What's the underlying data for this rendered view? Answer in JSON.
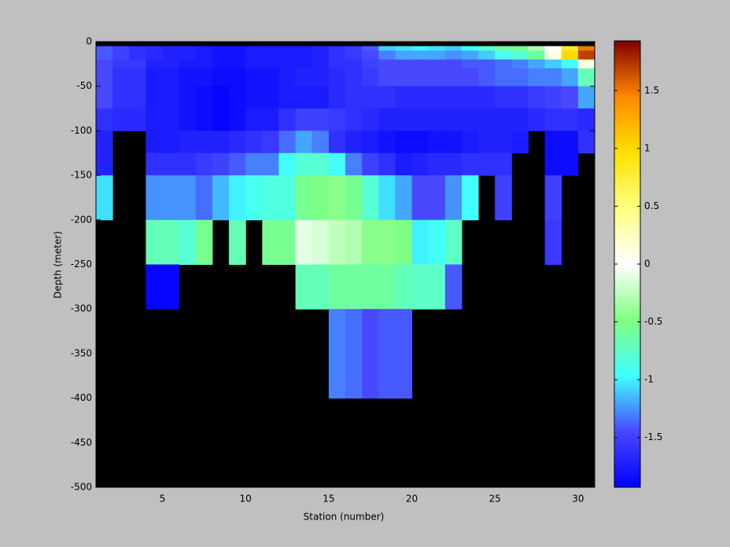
{
  "chart_data": {
    "type": "heatmap",
    "xlabel": "Station (number)",
    "ylabel": "Depth (meter)",
    "x": [
      1,
      2,
      3,
      4,
      5,
      6,
      7,
      8,
      9,
      10,
      11,
      12,
      13,
      14,
      15,
      16,
      17,
      18,
      19,
      20,
      21,
      22,
      23,
      24,
      25,
      26,
      27,
      28,
      29,
      30,
      31
    ],
    "y": [
      0,
      -5,
      -10,
      -20,
      -30,
      -50,
      -75,
      -100,
      -125,
      -150,
      -200,
      -250,
      -300,
      -400,
      -500
    ],
    "values": [
      [
        null,
        null,
        null,
        null,
        null,
        null,
        null,
        null,
        null,
        null,
        null,
        null,
        null,
        null,
        null,
        null,
        null,
        null,
        null,
        null,
        null,
        null,
        null,
        null,
        null,
        null,
        null,
        null,
        null,
        null
      ],
      [
        -1.4,
        -1.5,
        -1.6,
        -1.65,
        -1.7,
        -1.7,
        -1.75,
        -1.8,
        -1.8,
        -1.75,
        -1.75,
        -1.75,
        -1.75,
        -1.7,
        -1.6,
        -1.55,
        -1.4,
        -1.1,
        -1.05,
        -1.0,
        -1.05,
        -1.1,
        -0.95,
        -0.8,
        -0.6,
        -0.55,
        -0.3,
        0,
        0.8,
        1.5
      ],
      [
        -1.4,
        -1.5,
        -1.6,
        -1.65,
        -1.7,
        -1.7,
        -1.75,
        -1.8,
        -1.8,
        -1.75,
        -1.75,
        -1.75,
        -1.75,
        -1.7,
        -1.6,
        -1.55,
        -1.45,
        -1.3,
        -1.2,
        -1.2,
        -1.2,
        -1.25,
        -1.2,
        -1.1,
        -0.9,
        -0.8,
        -0.6,
        0.1,
        1.0,
        1.7
      ],
      [
        -1.45,
        -1.55,
        -1.55,
        -1.7,
        -1.7,
        -1.75,
        -1.75,
        -1.8,
        -1.8,
        -1.75,
        -1.75,
        -1.75,
        -1.75,
        -1.7,
        -1.6,
        -1.6,
        -1.5,
        -1.45,
        -1.45,
        -1.45,
        -1.45,
        -1.45,
        -1.4,
        -1.4,
        -1.35,
        -1.3,
        -1.2,
        -1.1,
        -0.95,
        0.1
      ],
      [
        -1.45,
        -1.6,
        -1.6,
        -1.75,
        -1.75,
        -1.8,
        -1.8,
        -1.85,
        -1.85,
        -1.8,
        -1.8,
        -1.75,
        -1.7,
        -1.7,
        -1.65,
        -1.6,
        -1.55,
        -1.45,
        -1.45,
        -1.45,
        -1.45,
        -1.45,
        -1.45,
        -1.4,
        -1.35,
        -1.35,
        -1.3,
        -1.3,
        -1.2,
        -0.7
      ],
      [
        -1.45,
        -1.6,
        -1.6,
        -1.75,
        -1.75,
        -1.8,
        -1.85,
        -1.9,
        -1.85,
        -1.8,
        -1.8,
        -1.75,
        -1.75,
        -1.75,
        -1.65,
        -1.6,
        -1.6,
        -1.6,
        -1.65,
        -1.65,
        -1.65,
        -1.65,
        -1.65,
        -1.65,
        -1.6,
        -1.6,
        -1.55,
        -1.5,
        -1.45,
        -1.2
      ],
      [
        -1.6,
        -1.65,
        -1.65,
        -1.75,
        -1.75,
        -1.8,
        -1.85,
        -1.9,
        -1.85,
        -1.75,
        -1.75,
        -1.6,
        -1.5,
        -1.5,
        -1.55,
        -1.6,
        -1.65,
        -1.7,
        -1.7,
        -1.7,
        -1.7,
        -1.7,
        -1.7,
        -1.7,
        -1.7,
        -1.7,
        -1.65,
        -1.6,
        -1.6,
        -1.65
      ],
      [
        -1.7,
        null,
        null,
        -1.75,
        -1.75,
        -1.7,
        -1.7,
        -1.7,
        -1.65,
        -1.6,
        -1.55,
        -1.35,
        -1.2,
        -1.3,
        -1.6,
        -1.7,
        -1.75,
        -1.8,
        -1.85,
        -1.85,
        -1.8,
        -1.8,
        -1.75,
        -1.7,
        -1.7,
        -1.75,
        null,
        -1.85,
        -1.85,
        -1.6
      ],
      [
        -1.7,
        null,
        null,
        -1.6,
        -1.6,
        -1.6,
        -1.55,
        -1.5,
        -1.4,
        -1.3,
        -1.3,
        -0.95,
        -0.8,
        -0.8,
        -0.95,
        -1.3,
        -1.5,
        -1.6,
        -1.75,
        -1.7,
        -1.65,
        -1.65,
        -1.6,
        -1.6,
        -1.6,
        null,
        null,
        -1.85,
        -1.85,
        null
      ],
      [
        -1.05,
        null,
        null,
        -1.25,
        -1.25,
        -1.25,
        -1.35,
        -1.15,
        -1.0,
        -0.9,
        -0.85,
        -0.85,
        -0.55,
        -0.5,
        -0.45,
        -0.55,
        -0.8,
        -1.05,
        -1.2,
        -1.45,
        -1.45,
        -1.25,
        -0.95,
        null,
        -1.5,
        null,
        null,
        -1.5,
        null,
        null
      ],
      [
        null,
        null,
        null,
        -0.7,
        -0.7,
        -0.8,
        -0.55,
        null,
        -0.7,
        null,
        -0.55,
        -0.55,
        -0.1,
        -0.15,
        -0.25,
        -0.3,
        -0.45,
        -0.45,
        -0.5,
        -1.0,
        -0.95,
        -0.75,
        null,
        null,
        null,
        null,
        null,
        -1.55,
        null,
        null
      ],
      [
        null,
        null,
        null,
        -1.9,
        -1.9,
        null,
        null,
        null,
        null,
        null,
        null,
        null,
        -0.7,
        -0.7,
        -0.6,
        -0.6,
        -0.6,
        -0.6,
        -0.7,
        -0.75,
        -0.75,
        -1.4,
        null,
        null,
        null,
        null,
        null,
        null,
        null,
        null
      ],
      [
        null,
        null,
        null,
        null,
        null,
        null,
        null,
        null,
        null,
        null,
        null,
        null,
        null,
        null,
        -1.3,
        -1.35,
        -1.45,
        -1.4,
        -1.4,
        null,
        null,
        null,
        null,
        null,
        null,
        null,
        null,
        null,
        null,
        null
      ],
      [
        null,
        null,
        null,
        null,
        null,
        null,
        null,
        null,
        null,
        null,
        null,
        null,
        null,
        null,
        null,
        null,
        null,
        null,
        null,
        null,
        null,
        null,
        null,
        null,
        null,
        null,
        null,
        null,
        null,
        null
      ]
    ],
    "xlim": [
      1,
      31
    ],
    "ylim": [
      -500,
      0
    ],
    "xticks": [
      5,
      10,
      15,
      20,
      25,
      30
    ],
    "yticks": [
      0,
      -50,
      -100,
      -150,
      -200,
      -250,
      -300,
      -350,
      -400,
      -450,
      -500
    ],
    "clim": [
      -1.93,
      1.93
    ],
    "cticks": [
      -1.5,
      -1,
      -0.5,
      0,
      0.5,
      1,
      1.5
    ],
    "colormap": [
      "#0000ff",
      "#4848ff",
      "#40ffff",
      "#80ff80",
      "#ffffff",
      "#ffff80",
      "#ffe000",
      "#ff8800",
      "#800000"
    ],
    "nan_color": "#000000"
  }
}
